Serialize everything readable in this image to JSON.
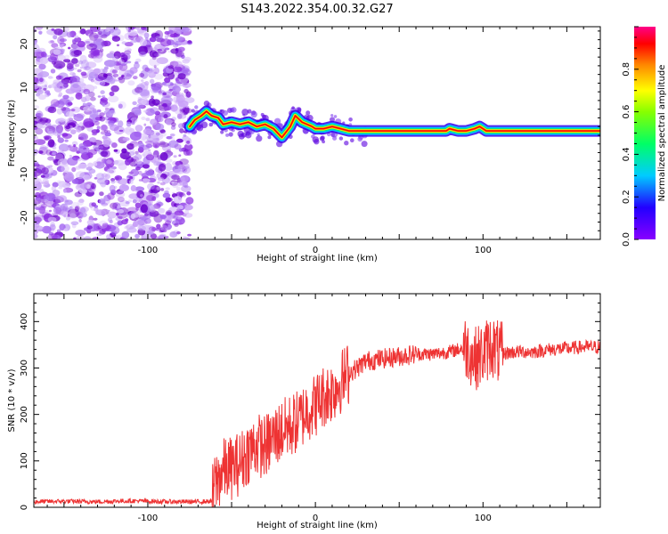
{
  "title": "S143.2022.354.00.32.G27",
  "chart_data": [
    {
      "type": "heatmap",
      "xlabel": "Height of straight line (km)",
      "ylabel": "Frequency (Hz)",
      "xlim": [
        -168,
        170
      ],
      "ylim": [
        -25,
        24
      ],
      "xticks": [
        "-100",
        "0",
        "100"
      ],
      "yticks": [
        "-20",
        "-10",
        "0",
        "10",
        "20"
      ],
      "ridge": {
        "x": [
          -75,
          -72,
          -68,
          -65,
          -62,
          -58,
          -55,
          -50,
          -45,
          -40,
          -35,
          -30,
          -25,
          -20,
          -15,
          -12,
          -8,
          -5,
          -2,
          0,
          5,
          10,
          15,
          20,
          30,
          60,
          78,
          80,
          85,
          90,
          95,
          98,
          100,
          102,
          110,
          150,
          170
        ],
        "y": [
          1,
          2.5,
          3.5,
          4.5,
          3.5,
          3,
          1.5,
          2,
          1.5,
          2,
          1,
          1.5,
          0.5,
          -1.5,
          1,
          3.5,
          2,
          1.5,
          1,
          0.5,
          0.5,
          1,
          0.5,
          0,
          0,
          0,
          0,
          0.5,
          0,
          0,
          0.5,
          1,
          0.5,
          0,
          0,
          0,
          0
        ]
      },
      "colorbar": {
        "label": "Normalized spectral amplitude",
        "range": [
          0,
          1
        ],
        "ticks": [
          "0.0",
          "0.2",
          "0.4",
          "0.6",
          "0.8"
        ]
      }
    },
    {
      "type": "line",
      "xlabel": "Height of straight line (km)",
      "ylabel": "SNR (10 * v/v)",
      "xlim": [
        -168,
        170
      ],
      "ylim": [
        0,
        460
      ],
      "xticks": [
        "-100",
        "0",
        "100"
      ],
      "yticks": [
        "0",
        "100",
        "200",
        "300",
        "400"
      ],
      "color": "#ee3333",
      "series": [
        {
          "x": [
            -168,
            -150,
            -130,
            -110,
            -90,
            -70,
            -62,
            -60,
            -55,
            -50,
            -45,
            -40,
            -35,
            -30,
            -25,
            -20,
            -15,
            -10,
            -5,
            0,
            5,
            10,
            15,
            20,
            25,
            30,
            40,
            50,
            60,
            70,
            80,
            90,
            95,
            100,
            105,
            110,
            120,
            130,
            140,
            150,
            160,
            170
          ],
          "y": [
            12,
            13,
            12,
            14,
            12,
            12,
            13,
            50,
            80,
            85,
            95,
            120,
            135,
            130,
            150,
            165,
            175,
            185,
            210,
            220,
            240,
            250,
            270,
            290,
            300,
            315,
            320,
            325,
            330,
            330,
            335,
            345,
            320,
            330,
            350,
            330,
            335,
            335,
            340,
            342,
            345,
            345
          ]
        }
      ]
    }
  ]
}
